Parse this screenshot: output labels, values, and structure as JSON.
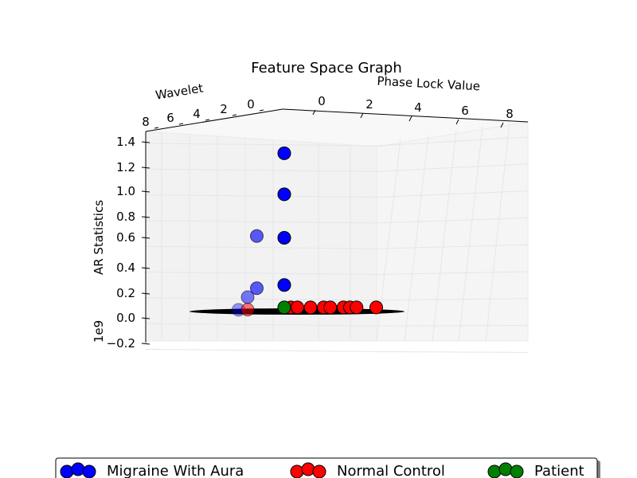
{
  "chart_data": {
    "type": "scatter3d",
    "title": "Feature Space Graph",
    "xlabel": "Phase Lock Value",
    "ylabel": "Wavelet",
    "zlabel": "AR Statistics",
    "z_offset_label": "1e9",
    "x_ticks": [
      "0",
      "2",
      "4",
      "6",
      "8"
    ],
    "y_ticks": [
      "8",
      "6",
      "4",
      "2",
      "0"
    ],
    "z_ticks": [
      "1.4",
      "1.2",
      "1.0",
      "0.8",
      "0.6",
      "0.4",
      "0.2",
      "0.0",
      "−0.2"
    ],
    "grid": true,
    "legend_position": "bottom-center",
    "series": [
      {
        "name": "Migraine With Aura",
        "color": "#0000ff",
        "points": [
          {
            "x": 0,
            "y": 0,
            "z": 1.26
          },
          {
            "x": 0,
            "y": 0,
            "z": 0.93
          },
          {
            "x": 0,
            "y": 0,
            "z": 0.58
          },
          {
            "x": 0,
            "y": 3,
            "z": 0.6
          },
          {
            "x": 0,
            "y": 0,
            "z": 0.2
          },
          {
            "x": 0,
            "y": 3,
            "z": 0.18
          },
          {
            "x": 0,
            "y": 4,
            "z": 0.11
          },
          {
            "x": 0,
            "y": 5,
            "z": 0.01
          }
        ]
      },
      {
        "name": "Normal Control",
        "color": "#ff0000",
        "points": [
          {
            "x": 0,
            "y": 4,
            "z": 0.01
          },
          {
            "x": 0.5,
            "y": 0,
            "z": 0.02
          },
          {
            "x": 1,
            "y": 0,
            "z": 0.02
          },
          {
            "x": 2,
            "y": 0,
            "z": 0.02
          },
          {
            "x": 3,
            "y": 0,
            "z": 0.02
          },
          {
            "x": 3.5,
            "y": 0,
            "z": 0.02
          },
          {
            "x": 4.5,
            "y": 0,
            "z": 0.02
          },
          {
            "x": 5,
            "y": 0,
            "z": 0.02
          },
          {
            "x": 5.5,
            "y": 0,
            "z": 0.02
          },
          {
            "x": 7,
            "y": 0,
            "z": 0.02
          }
        ]
      },
      {
        "name": "Patient",
        "color": "#008000",
        "points": [
          {
            "x": 0,
            "y": 0,
            "z": 0.02
          }
        ]
      }
    ]
  }
}
